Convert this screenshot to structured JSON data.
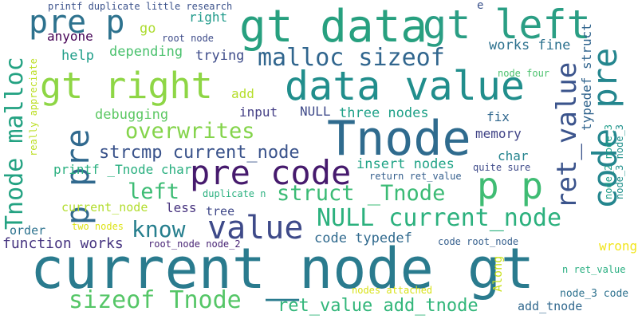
{
  "words": [
    {
      "id": "w0",
      "text": "current_node gt",
      "color": "#2a7b8e"
    },
    {
      "id": "w1",
      "text": "Tnode",
      "color": "#2f6b8e"
    },
    {
      "id": "w2",
      "text": "gt data",
      "color": "#27a07f"
    },
    {
      "id": "w3",
      "text": "data value",
      "color": "#218e8c"
    },
    {
      "id": "w4",
      "text": "gt left",
      "color": "#2a9e84"
    },
    {
      "id": "w5",
      "text": "gt right",
      "color": "#8ed645"
    },
    {
      "id": "w6",
      "text": "pre code",
      "color": "#461a6d"
    },
    {
      "id": "w7",
      "text": "p p",
      "color": "#3fbc73"
    },
    {
      "id": "w8",
      "text": "pre p",
      "color": "#2d728e"
    },
    {
      "id": "w9",
      "text": "p pre",
      "color": "#30698e"
    },
    {
      "id": "w10",
      "text": "Tnode malloc",
      "color": "#23a282"
    },
    {
      "id": "w11",
      "text": "code pre",
      "color": "#24868e"
    },
    {
      "id": "w12",
      "text": "ret_value",
      "color": "#3b548c"
    },
    {
      "id": "w13",
      "text": "malloc sizeof",
      "color": "#31668e"
    },
    {
      "id": "w14",
      "text": "value",
      "color": "#3e4a89"
    },
    {
      "id": "w15",
      "text": "NULL current_node",
      "color": "#2cb17e"
    },
    {
      "id": "w16",
      "text": "sizeof Tnode",
      "color": "#55c667"
    },
    {
      "id": "w17",
      "text": "struct _Tnode",
      "color": "#3bbb75"
    },
    {
      "id": "w18",
      "text": "know",
      "color": "#277f8e"
    },
    {
      "id": "w19",
      "text": "left",
      "color": "#3dbc74"
    },
    {
      "id": "w20",
      "text": "overwrites",
      "color": "#84d44b"
    },
    {
      "id": "w21",
      "text": "strcmp current_node",
      "color": "#3a538b"
    },
    {
      "id": "w22",
      "text": "ret_value add_tnode",
      "color": "#32b67a"
    },
    {
      "id": "w23",
      "text": "code typedef",
      "color": "#306a8e"
    },
    {
      "id": "w24",
      "text": "function works",
      "color": "#463480"
    },
    {
      "id": "w25",
      "text": "works fine",
      "color": "#2c718e"
    },
    {
      "id": "w26",
      "text": "typedef struct",
      "color": "#32658e"
    },
    {
      "id": "w27",
      "text": "printf _Tnode char",
      "color": "#29af7f"
    },
    {
      "id": "w28",
      "text": "insert nodes",
      "color": "#20a386"
    },
    {
      "id": "w29",
      "text": "three nodes",
      "color": "#1fa188"
    },
    {
      "id": "w30",
      "text": "debugging",
      "color": "#5cc863"
    },
    {
      "id": "w31",
      "text": "depending",
      "color": "#4ac16d"
    },
    {
      "id": "w32",
      "text": "trying",
      "color": "#3e4c8a"
    },
    {
      "id": "w33",
      "text": "help",
      "color": "#1f9e89"
    },
    {
      "id": "w34",
      "text": "anyone",
      "color": "#440154"
    },
    {
      "id": "w35",
      "text": "go",
      "color": "#addc30"
    },
    {
      "id": "w36",
      "text": "root node",
      "color": "#3e4c8a"
    },
    {
      "id": "w37",
      "text": "right",
      "color": "#1f9a8a"
    },
    {
      "id": "w38",
      "text": "printf duplicate little research",
      "color": "#3b528b"
    },
    {
      "id": "w39",
      "text": "e",
      "color": "#3b528b"
    },
    {
      "id": "w40",
      "text": "really appreciate",
      "color": "#bddf26"
    },
    {
      "id": "w41",
      "text": "node four",
      "color": "#4ac16d"
    },
    {
      "id": "w42",
      "text": "add",
      "color": "#b5de2b"
    },
    {
      "id": "w43",
      "text": "input",
      "color": "#433e85"
    },
    {
      "id": "w44",
      "text": "NULL",
      "color": "#3e4989"
    },
    {
      "id": "w45",
      "text": "fix",
      "color": "#31688e"
    },
    {
      "id": "w46",
      "text": "memory",
      "color": "#414487"
    },
    {
      "id": "w47",
      "text": "char",
      "color": "#25848e"
    },
    {
      "id": "w48",
      "text": "node_3 node_3",
      "color": "#21918c"
    },
    {
      "id": "w49",
      "text": "node_2 node_3",
      "color": "#1f9e89"
    },
    {
      "id": "w50",
      "text": "quite sure",
      "color": "#3e4a89"
    },
    {
      "id": "w51",
      "text": "return ret_value",
      "color": "#355f8d"
    },
    {
      "id": "w52",
      "text": "duplicate n",
      "color": "#2ab07f"
    },
    {
      "id": "w53",
      "text": "less",
      "color": "#46327e"
    },
    {
      "id": "w54",
      "text": "current_node",
      "color": "#b2dd2d"
    },
    {
      "id": "w55",
      "text": "tree",
      "color": "#3f4889"
    },
    {
      "id": "w56",
      "text": "order",
      "color": "#2c728e"
    },
    {
      "id": "w57",
      "text": "two nodes",
      "color": "#dde318"
    },
    {
      "id": "w58",
      "text": "root_node node_2",
      "color": "#482475"
    },
    {
      "id": "w59",
      "text": "code root_node",
      "color": "#355f8d"
    },
    {
      "id": "w60",
      "text": "wrong",
      "color": "#f1e51d"
    },
    {
      "id": "w61",
      "text": "n ret_value",
      "color": "#28ae80"
    },
    {
      "id": "w62",
      "text": "Along",
      "color": "#cae11f"
    },
    {
      "id": "w63",
      "text": "nodes attached",
      "color": "#d8e219"
    },
    {
      "id": "w64",
      "text": "node_3 code",
      "color": "#2c718e"
    },
    {
      "id": "w65",
      "text": "add_tnode",
      "color": "#31688e"
    }
  ]
}
